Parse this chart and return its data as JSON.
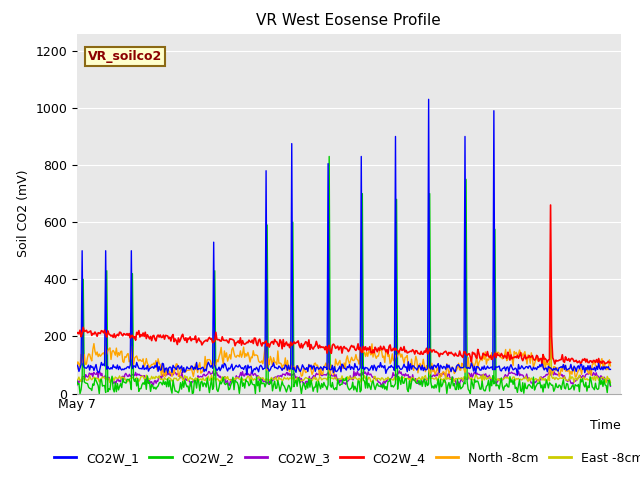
{
  "title": "VR West Eosense Profile",
  "ylabel": "Soil CO2 (mV)",
  "xlabel": "Time",
  "annotation": "VR_soilco2",
  "ylim": [
    0,
    1260
  ],
  "yticks": [
    0,
    200,
    400,
    600,
    800,
    1000,
    1200
  ],
  "xtick_labels": [
    "May 7",
    "May 11",
    "May 15"
  ],
  "xtick_positions": [
    0,
    4,
    8
  ],
  "xlim": [
    0,
    10.5
  ],
  "figure_bg": "#ffffff",
  "plot_bg": "#e8e8e8",
  "grid_color": "#cccccc",
  "title_fontsize": 11,
  "label_fontsize": 9,
  "tick_fontsize": 9,
  "legend_fontsize": 9,
  "annotation_color": "#8b0000",
  "annotation_bg": "#ffffcc",
  "annotation_edge": "#8b6914"
}
